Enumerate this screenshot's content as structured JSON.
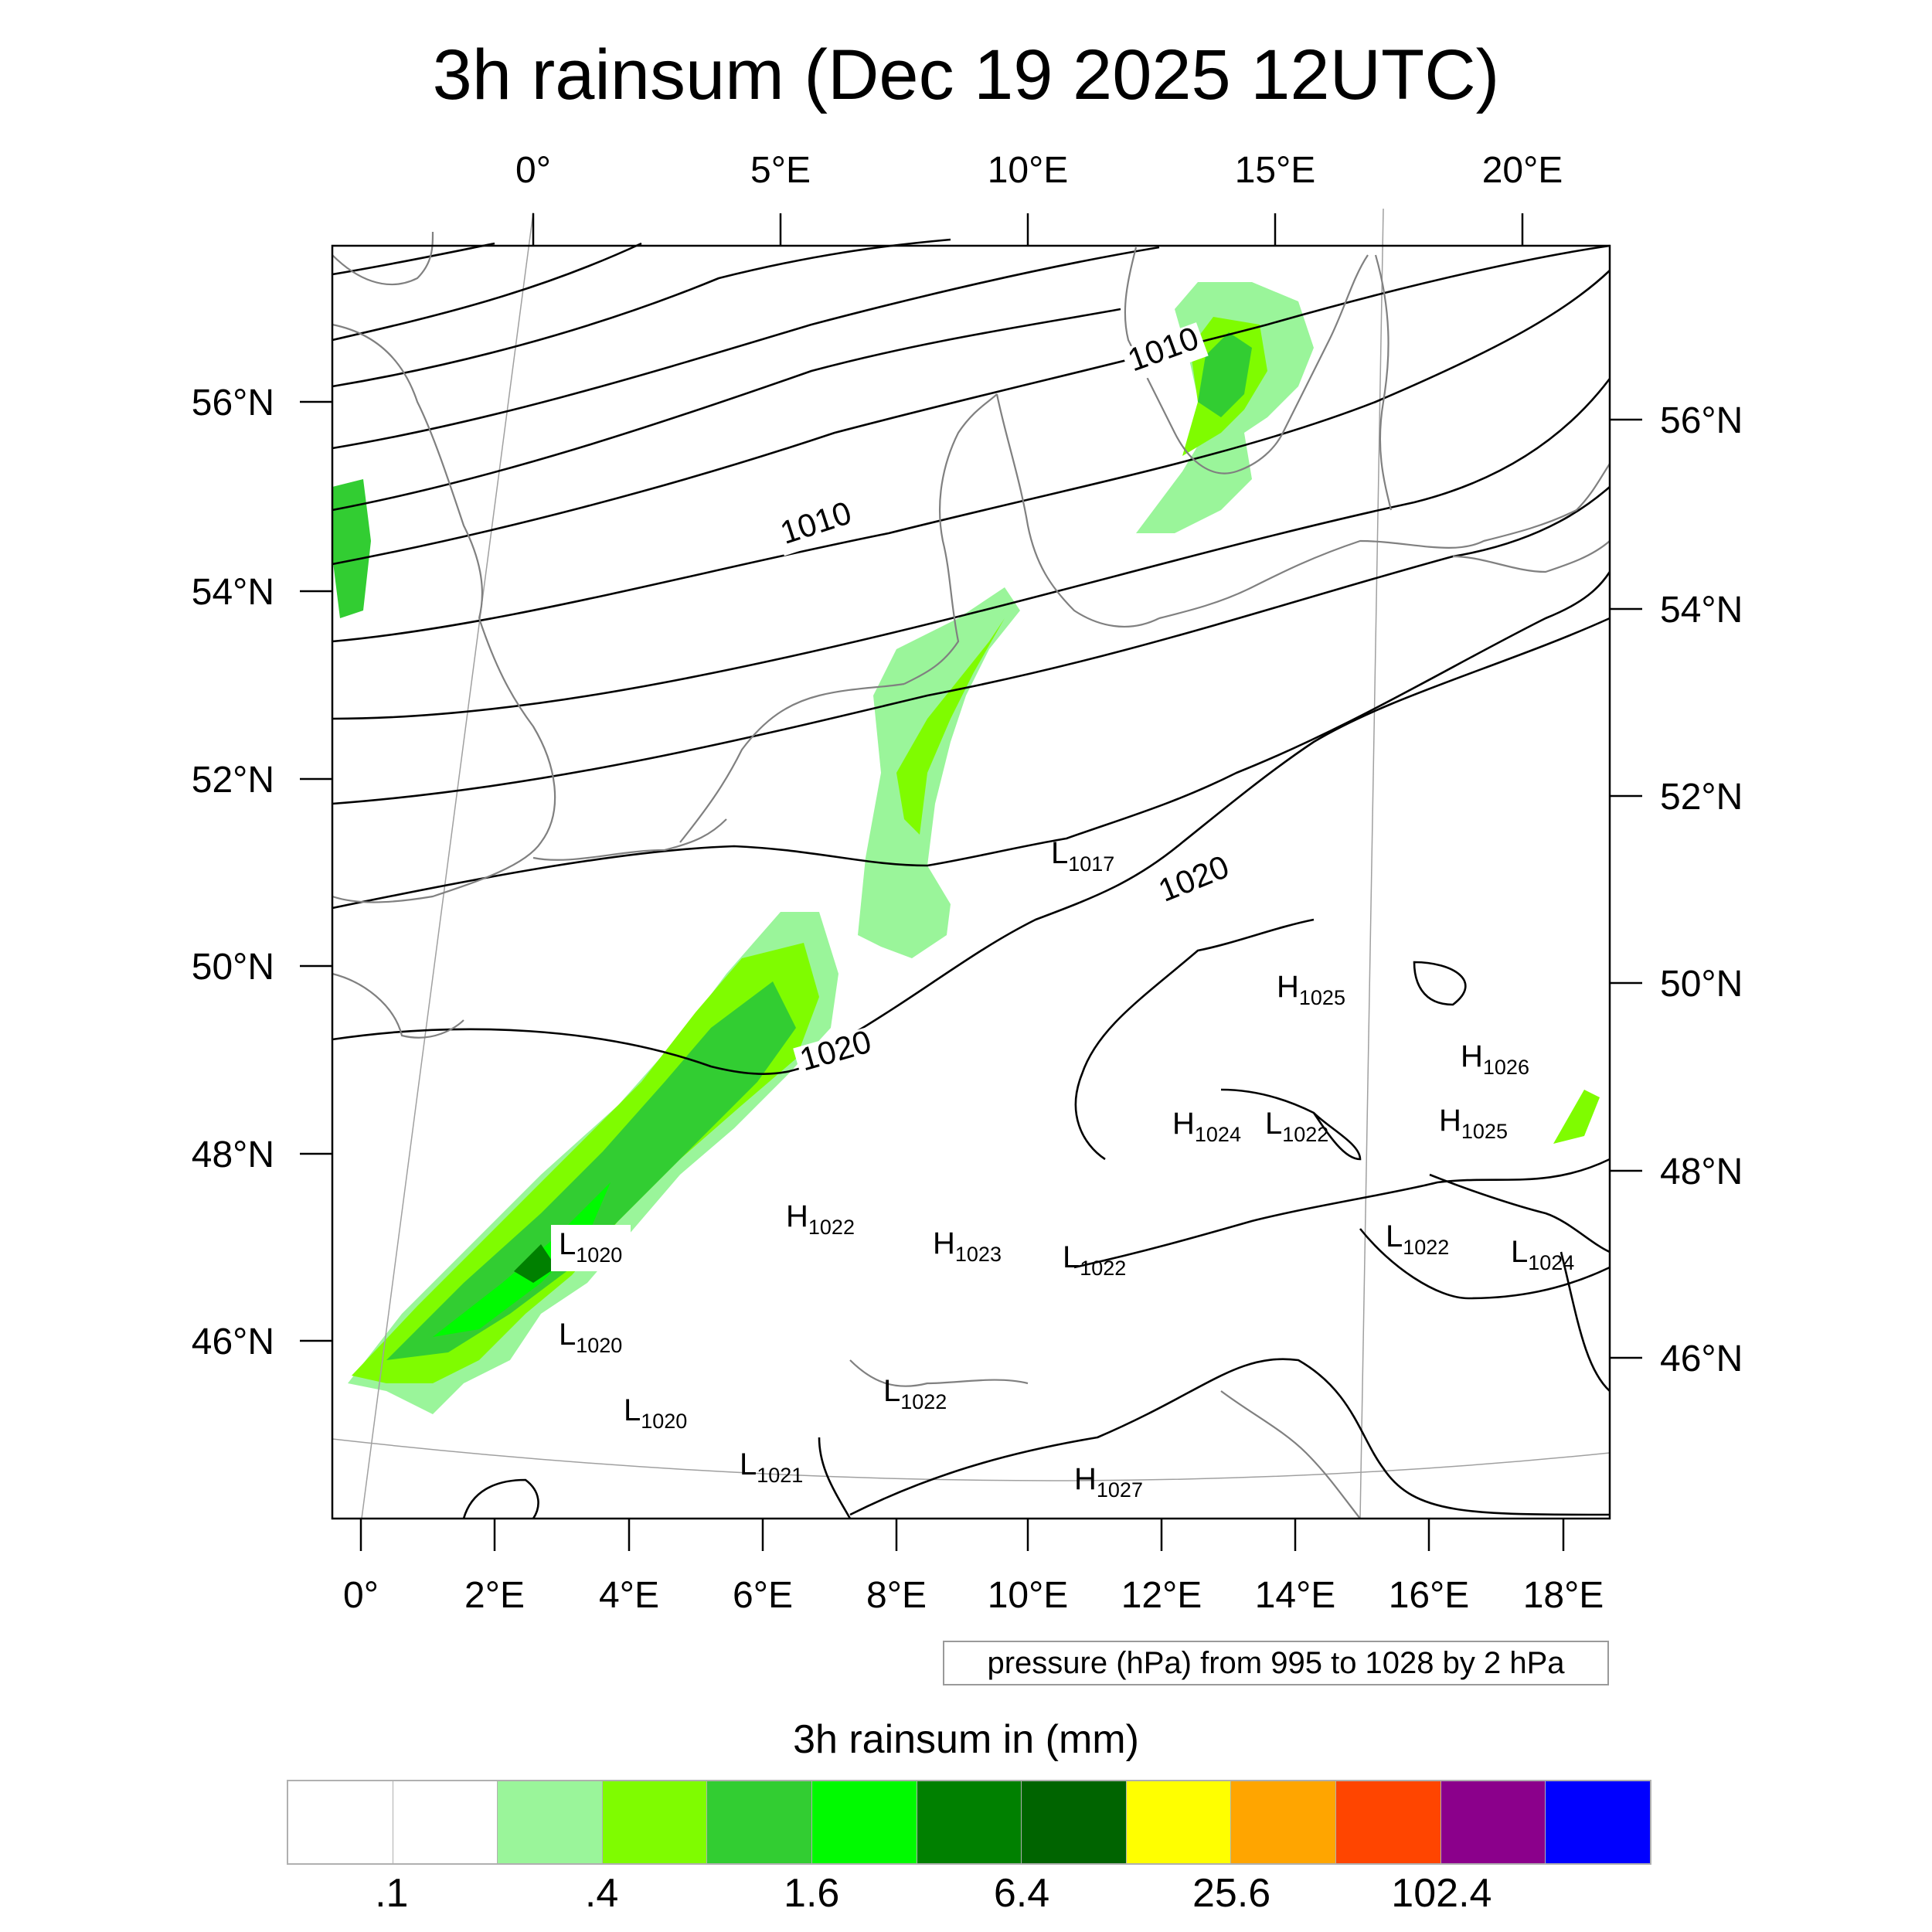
{
  "title": "3h rainsum (Dec 19 2025 12UTC)",
  "top_lon_labels": [
    "0°",
    "5°E",
    "10°E",
    "15°E",
    "20°E"
  ],
  "bottom_lon_labels": [
    "0°",
    "2°E",
    "4°E",
    "6°E",
    "8°E",
    "10°E",
    "12°E",
    "14°E",
    "16°E",
    "18°E"
  ],
  "left_lat_labels": [
    "56°N",
    "54°N",
    "52°N",
    "50°N",
    "48°N",
    "46°N"
  ],
  "right_lat_labels": [
    "56°N",
    "54°N",
    "52°N",
    "50°N",
    "48°N",
    "46°N"
  ],
  "isobar_labels": [
    "1010",
    "1010",
    "1020",
    "1020"
  ],
  "pressure_centers": [
    {
      "type": "L",
      "value": "1017"
    },
    {
      "type": "H",
      "value": "1025"
    },
    {
      "type": "H",
      "value": "1026"
    },
    {
      "type": "H",
      "value": "1024"
    },
    {
      "type": "L",
      "value": "1022"
    },
    {
      "type": "H",
      "value": "1025"
    },
    {
      "type": "H",
      "value": "1022"
    },
    {
      "type": "L",
      "value": "1020"
    },
    {
      "type": "H",
      "value": "1023"
    },
    {
      "type": "L",
      "value": "1022"
    },
    {
      "type": "L",
      "value": "1022"
    },
    {
      "type": "L",
      "value": "1024"
    },
    {
      "type": "L",
      "value": "1020"
    },
    {
      "type": "L",
      "value": "1020"
    },
    {
      "type": "L",
      "value": "1022"
    },
    {
      "type": "L",
      "value": "1021"
    },
    {
      "type": "H",
      "value": "1027"
    }
  ],
  "contour_info": "pressure (hPa) from 995 to 1028 by 2 hPa",
  "legend": {
    "title": "3h rainsum in (mm)",
    "colors": [
      "#ffffff",
      "#ffffff",
      "#9af59a",
      "#7ffc00",
      "#32cd32",
      "#00fa00",
      "#008000",
      "#006400",
      "#ffff00",
      "#ffa500",
      "#ff4500",
      "#8b008b",
      "#0000ff"
    ],
    "labels": [
      ".1",
      ".4",
      "1.6",
      "6.4",
      "25.6",
      "102.4"
    ]
  }
}
